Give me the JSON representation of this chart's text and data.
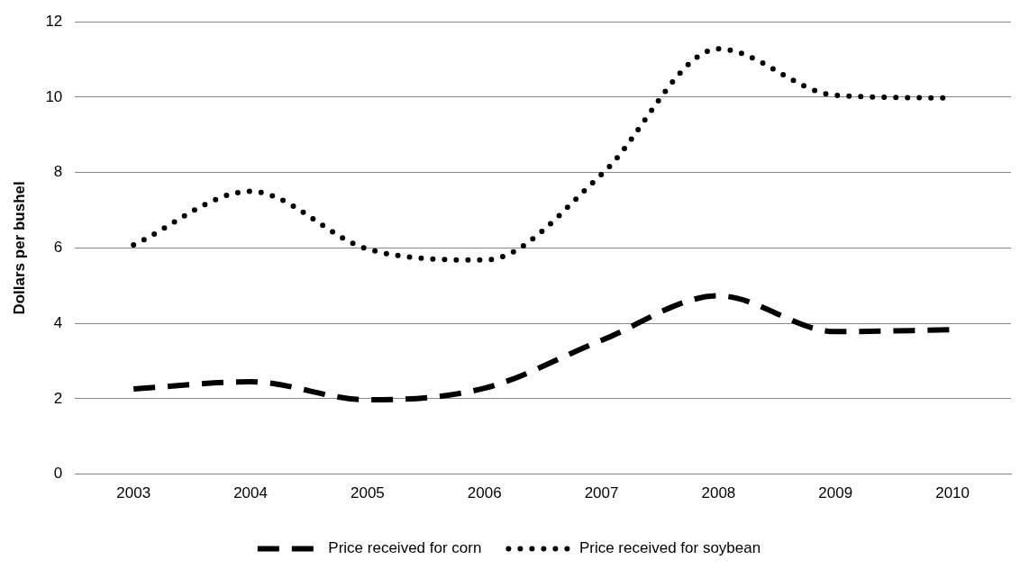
{
  "chart_data": {
    "type": "line",
    "ylabel": "Dollars per bushel",
    "categories": [
      "2003",
      "2004",
      "2005",
      "2006",
      "2007",
      "2008",
      "2009",
      "2010"
    ],
    "series": [
      {
        "name": "Price received for corn",
        "color": "#000000",
        "line_style": "dashed",
        "values": [
          2.26,
          2.45,
          1.97,
          2.28,
          3.55,
          4.73,
          3.78,
          3.83
        ]
      },
      {
        "name": "Price received for soybean",
        "color": "#000000",
        "line_style": "dotted",
        "values": [
          6.08,
          7.5,
          5.97,
          5.68,
          7.95,
          11.28,
          10.05,
          9.98
        ]
      }
    ],
    "ylim": [
      0,
      12
    ],
    "yticks": [
      0,
      2,
      4,
      6,
      8,
      10,
      12
    ],
    "grid": "y",
    "legend": "bottom",
    "marker": "none"
  }
}
